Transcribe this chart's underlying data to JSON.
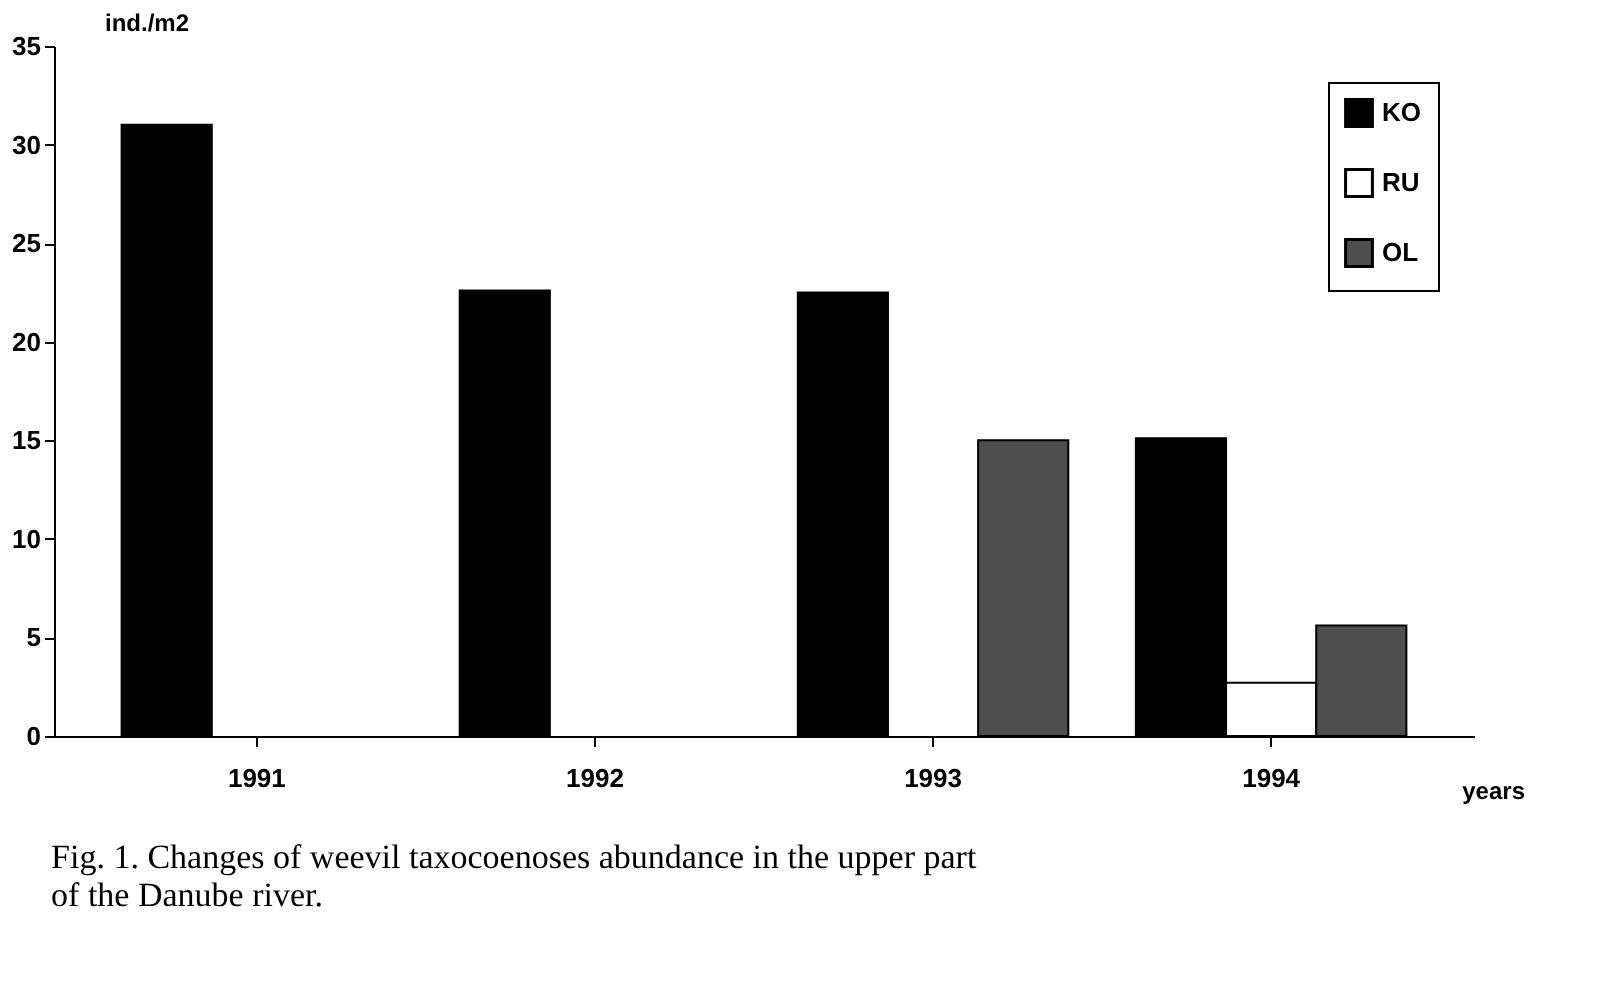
{
  "chart_data": {
    "type": "bar",
    "categories": [
      "1991",
      "1992",
      "1993",
      "1994"
    ],
    "series": [
      {
        "name": "KO",
        "color": "#000000",
        "values": [
          31,
          22.6,
          22.5,
          15.1
        ]
      },
      {
        "name": "RU",
        "color": "#ffffff",
        "values": [
          0,
          0,
          0,
          2.7
        ]
      },
      {
        "name": "OL",
        "color": "#4d4d4d",
        "values": [
          0,
          0,
          15,
          5.6
        ]
      }
    ],
    "ylabel": "ind./m2",
    "xlabel": "years",
    "ylim": [
      0,
      35
    ],
    "yticks": [
      0,
      5,
      10,
      15,
      20,
      25,
      30,
      35
    ],
    "grid": false,
    "legend": "top right",
    "annotations": [
      "Fig. 1. Changes of weevil taxocoenoses abundance in the upper part",
      "of the Danube river."
    ]
  }
}
